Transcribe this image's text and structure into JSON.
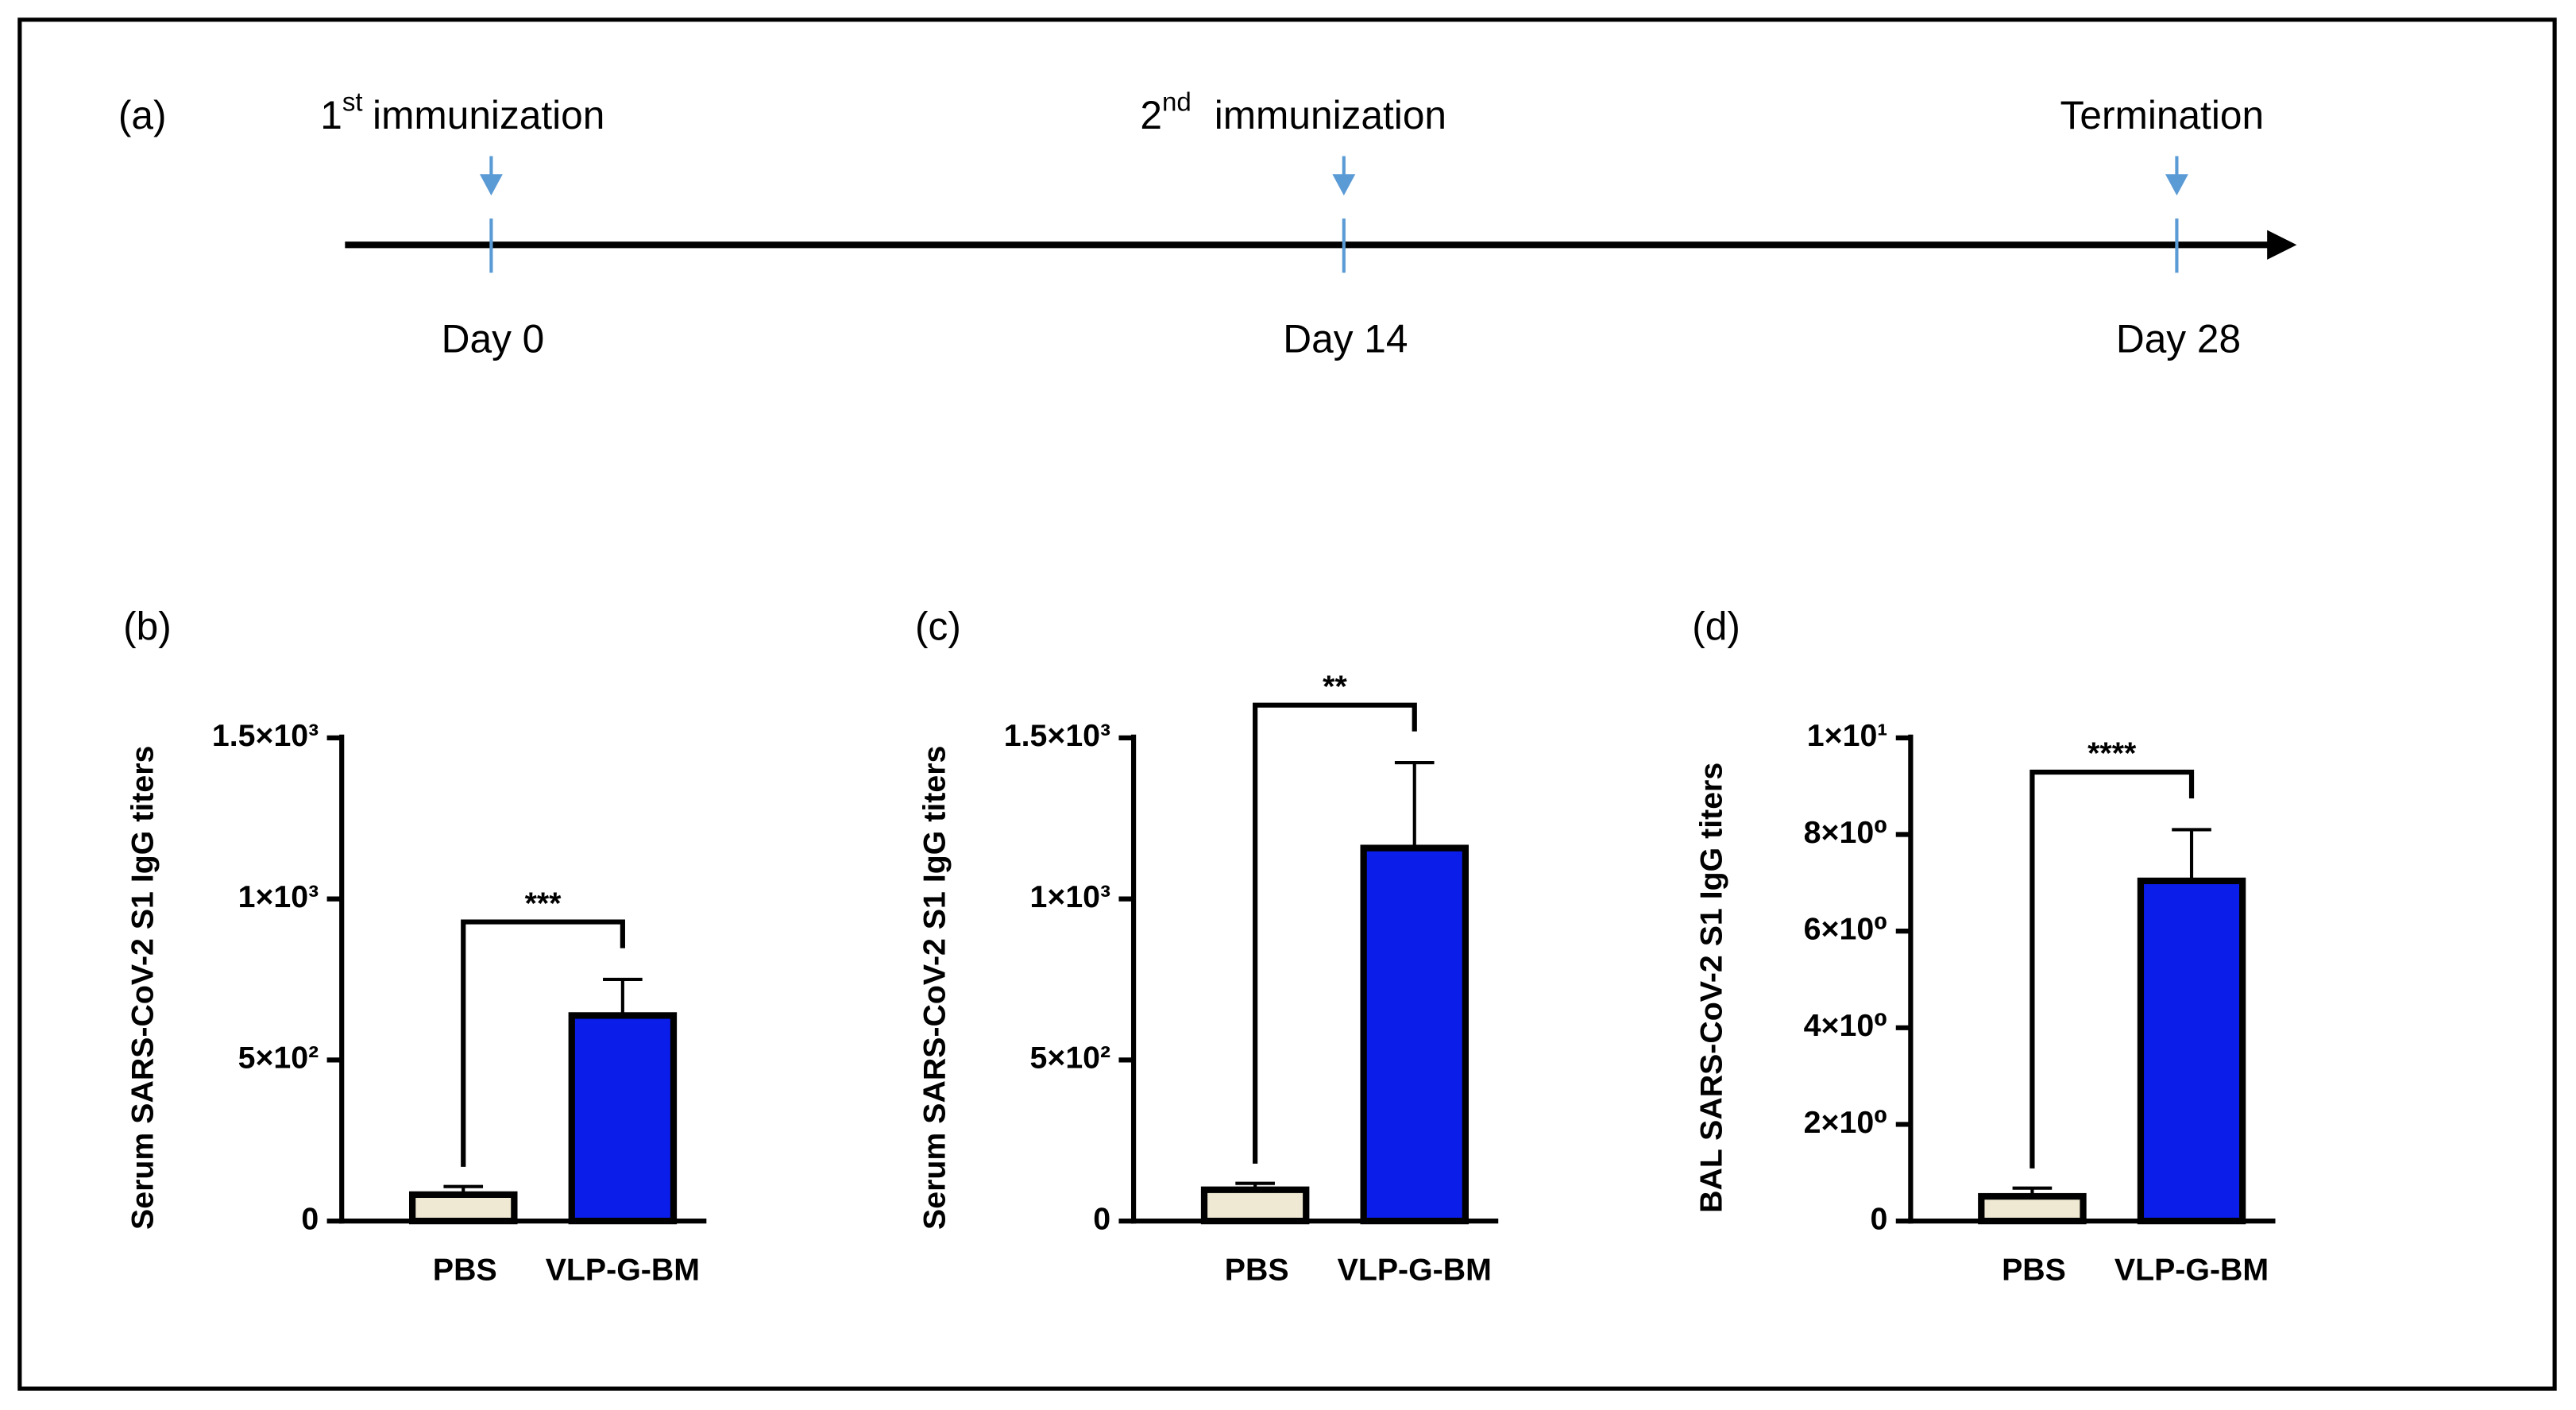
{
  "timeline": {
    "panel": "(a)",
    "events": [
      {
        "number": "1",
        "suffix": "st",
        "text": "immunization",
        "day": "Day 0"
      },
      {
        "number": "2",
        "suffix": "nd",
        "text": "immunization",
        "day": "Day 14"
      },
      {
        "text": "Termination",
        "day": "Day 28"
      }
    ]
  },
  "chart_data": [
    {
      "type": "bar",
      "panel": "(b)",
      "y_label": "Serum SARS-CoV-2 S1 IgG titers",
      "categories": [
        "PBS",
        "VLP-G-BM"
      ],
      "colors": [
        "#efe8d2",
        "#0b1de8"
      ],
      "values": [
        82,
        638
      ],
      "errors": [
        25,
        112
      ],
      "significance": "***",
      "ylim": [
        0,
        1500
      ],
      "yticks": [
        0,
        {
          "value": 500,
          "label": "5×10²"
        },
        {
          "value": 1000,
          "label": "1×10³"
        },
        {
          "value": 1500,
          "label": "1.5×10³"
        }
      ]
    },
    {
      "type": "bar",
      "panel": "(c)",
      "y_label": "Serum SARS-CoV-2 S1 IgG titers",
      "categories": [
        "PBS",
        "VLP-G-BM"
      ],
      "colors": [
        "#efe8d2",
        "#0b1de8"
      ],
      "values": [
        97,
        1158
      ],
      "errors": [
        20,
        265
      ],
      "significance": "**",
      "ylim": [
        0,
        1500
      ],
      "yticks": [
        0,
        {
          "value": 500,
          "label": "5×10²"
        },
        {
          "value": 1000,
          "label": "1×10³"
        },
        {
          "value": 1500,
          "label": "1.5×10³"
        }
      ]
    },
    {
      "type": "bar",
      "panel": "(d)",
      "y_label": "BAL SARS-CoV-2 S1 IgG titers",
      "categories": [
        "PBS",
        "VLP-G-BM"
      ],
      "colors": [
        "#efe8d2",
        "#0b1de8"
      ],
      "values": [
        0.51,
        7.04
      ],
      "errors": [
        0.17,
        1.06
      ],
      "significance": "****",
      "ylim": [
        0,
        10
      ],
      "yticks": [
        0,
        {
          "value": 2,
          "label": "2×10⁰"
        },
        {
          "value": 4,
          "label": "4×10⁰"
        },
        {
          "value": 6,
          "label": "6×10⁰"
        },
        {
          "value": 8,
          "label": "8×10⁰"
        },
        {
          "value": 10,
          "label": "1×10¹"
        }
      ]
    }
  ]
}
